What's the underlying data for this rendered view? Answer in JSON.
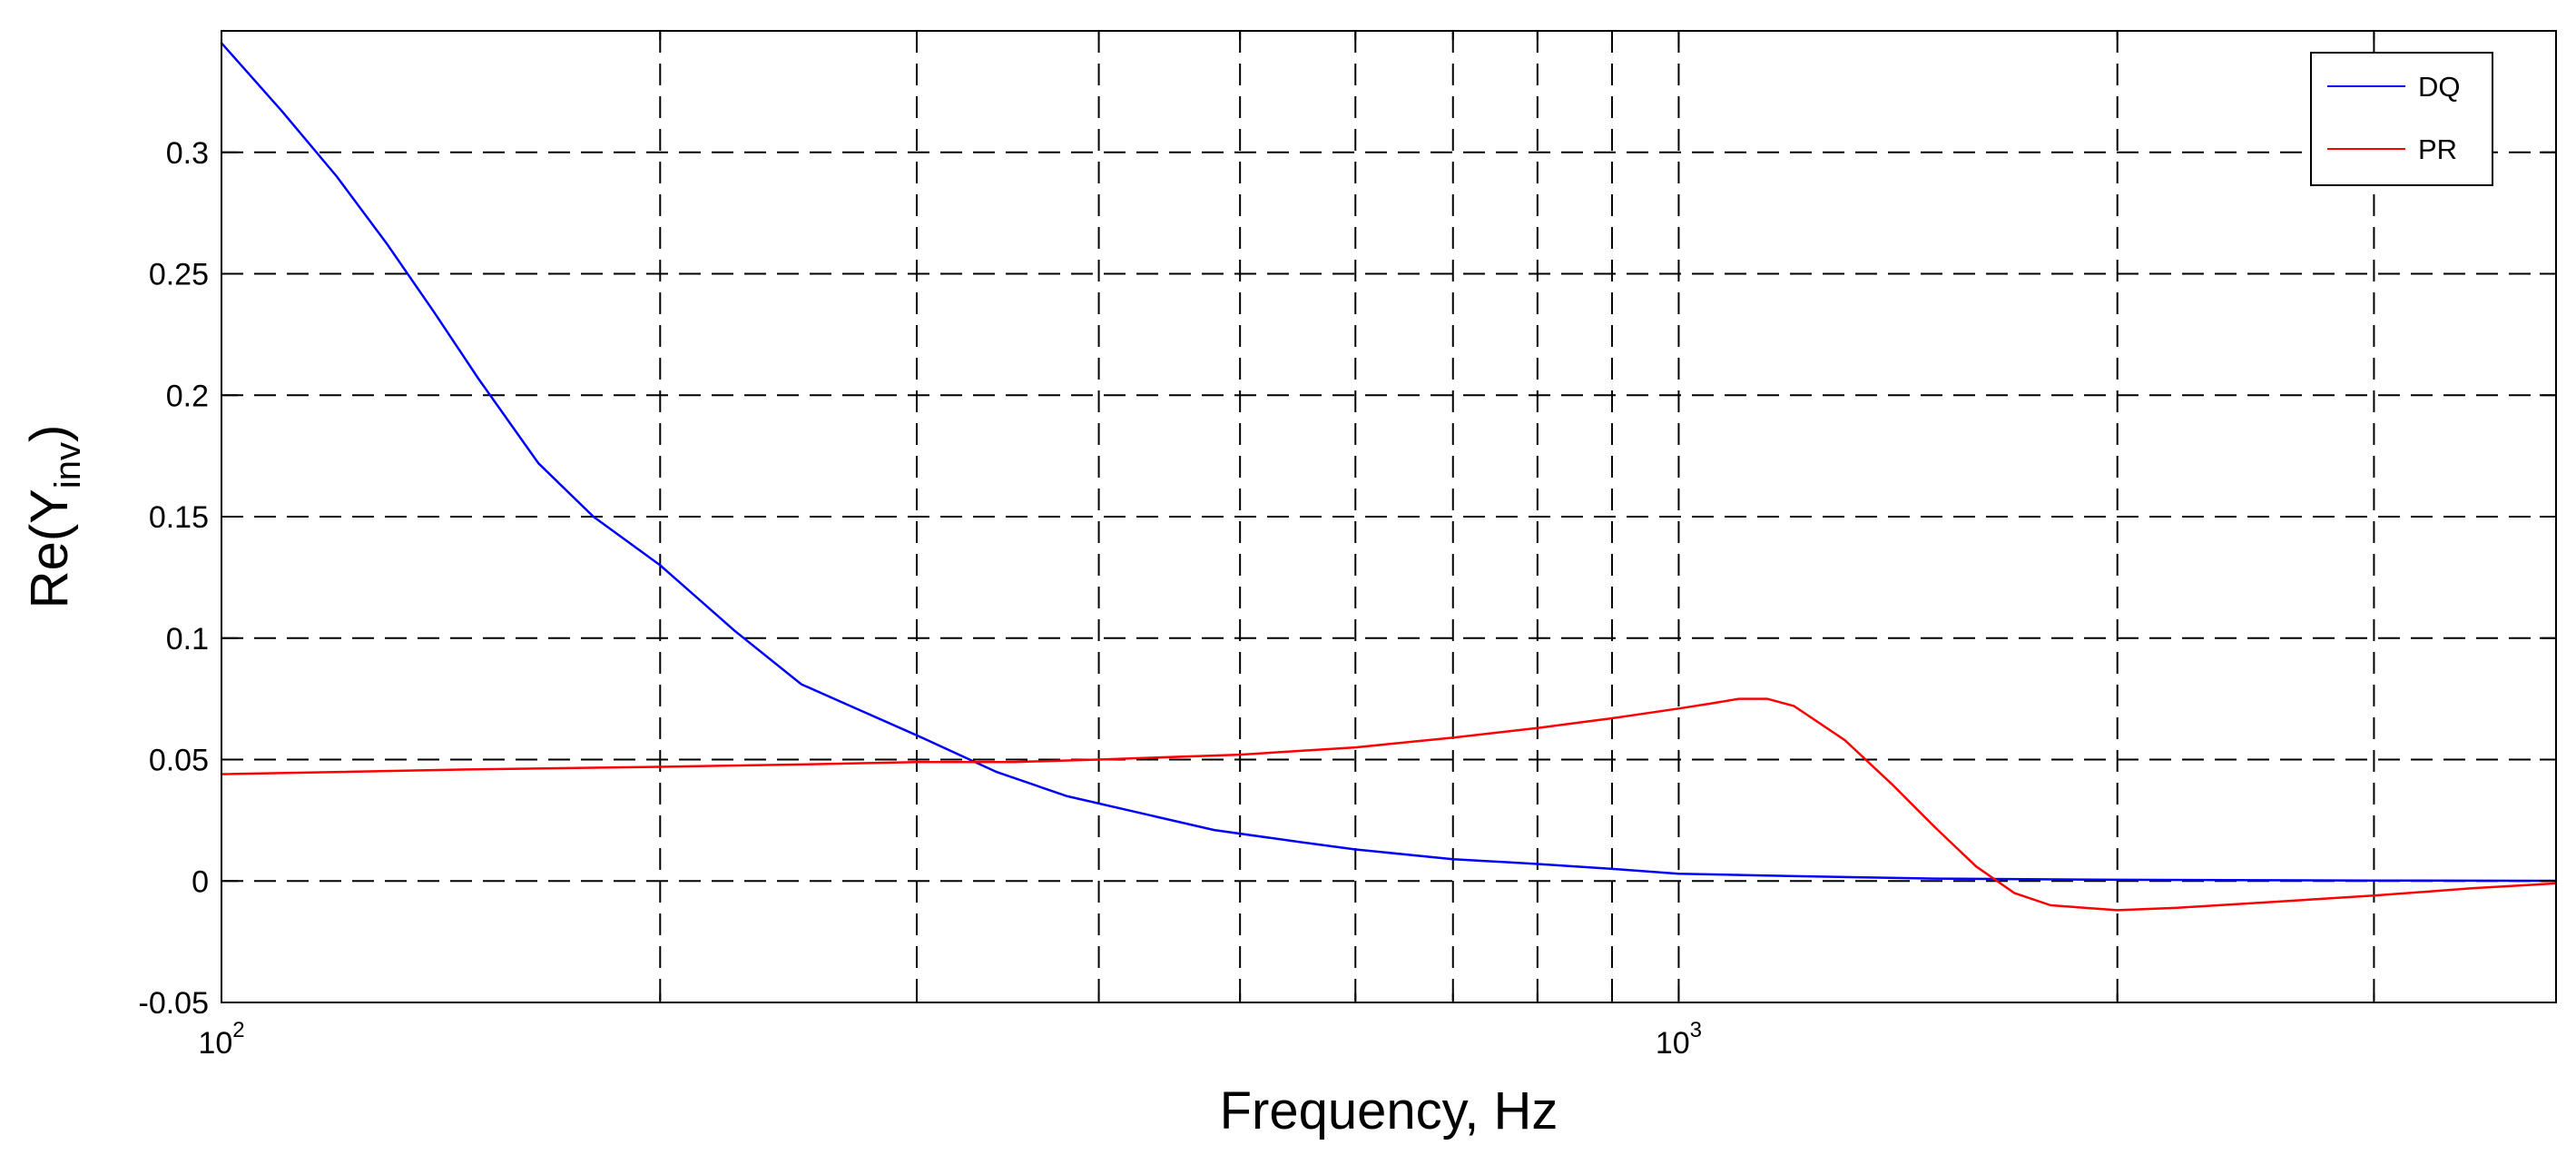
{
  "chart_data": {
    "type": "line",
    "xscale": "log",
    "xlim": [
      100,
      4000
    ],
    "ylim": [
      -0.05,
      0.35
    ],
    "grid": true,
    "xlabel": "Frequency, Hz",
    "ylabel": {
      "base": "Re(Y",
      "sub": "inv",
      "close": ")"
    },
    "legend_position": "top-right",
    "xticks": [
      {
        "value": 100,
        "base": "10",
        "exp": "2"
      },
      {
        "value": 1000,
        "base": "10",
        "exp": "3"
      }
    ],
    "xgrid": [
      200,
      300,
      400,
      500,
      600,
      700,
      800,
      900,
      2000,
      3000,
      4000
    ],
    "yticks": [
      {
        "value": 0.3,
        "label": "0.3"
      },
      {
        "value": 0.25,
        "label": "0.25"
      },
      {
        "value": 0.2,
        "label": "0.2"
      },
      {
        "value": 0.15,
        "label": "0.15"
      },
      {
        "value": 0.1,
        "label": "0.1"
      },
      {
        "value": 0.05,
        "label": "0.05"
      },
      {
        "value": 0,
        "label": "0"
      },
      {
        "value": -0.05,
        "label": "-0.05"
      }
    ],
    "series": [
      {
        "name": "DQ",
        "color": "#0000ff",
        "x": [
          100,
          110,
          120,
          130,
          140,
          150,
          165,
          180,
          200,
          225,
          250,
          275,
          300,
          340,
          380,
          420,
          480,
          550,
          600,
          700,
          800,
          900,
          1000,
          1200,
          1500,
          2000,
          3000,
          4000
        ],
        "y": [
          0.345,
          0.317,
          0.29,
          0.262,
          0.234,
          0.207,
          0.172,
          0.15,
          0.13,
          0.103,
          0.081,
          0.07,
          0.06,
          0.045,
          0.035,
          0.029,
          0.021,
          0.016,
          0.013,
          0.009,
          0.007,
          0.005,
          0.003,
          0.002,
          0.001,
          0.0005,
          0.0002,
          0.0001
        ]
      },
      {
        "name": "PR",
        "color": "#ff0000",
        "x": [
          100,
          150,
          200,
          250,
          300,
          350,
          400,
          500,
          600,
          700,
          800,
          900,
          1000,
          1050,
          1100,
          1150,
          1200,
          1300,
          1400,
          1500,
          1600,
          1700,
          1800,
          2000,
          2200,
          2500,
          3000,
          3500,
          4000
        ],
        "y": [
          0.044,
          0.046,
          0.047,
          0.048,
          0.049,
          0.049,
          0.05,
          0.052,
          0.055,
          0.059,
          0.063,
          0.067,
          0.071,
          0.073,
          0.075,
          0.075,
          0.072,
          0.058,
          0.04,
          0.022,
          0.006,
          -0.005,
          -0.01,
          -0.012,
          -0.011,
          -0.009,
          -0.006,
          -0.003,
          -0.001
        ]
      }
    ]
  }
}
